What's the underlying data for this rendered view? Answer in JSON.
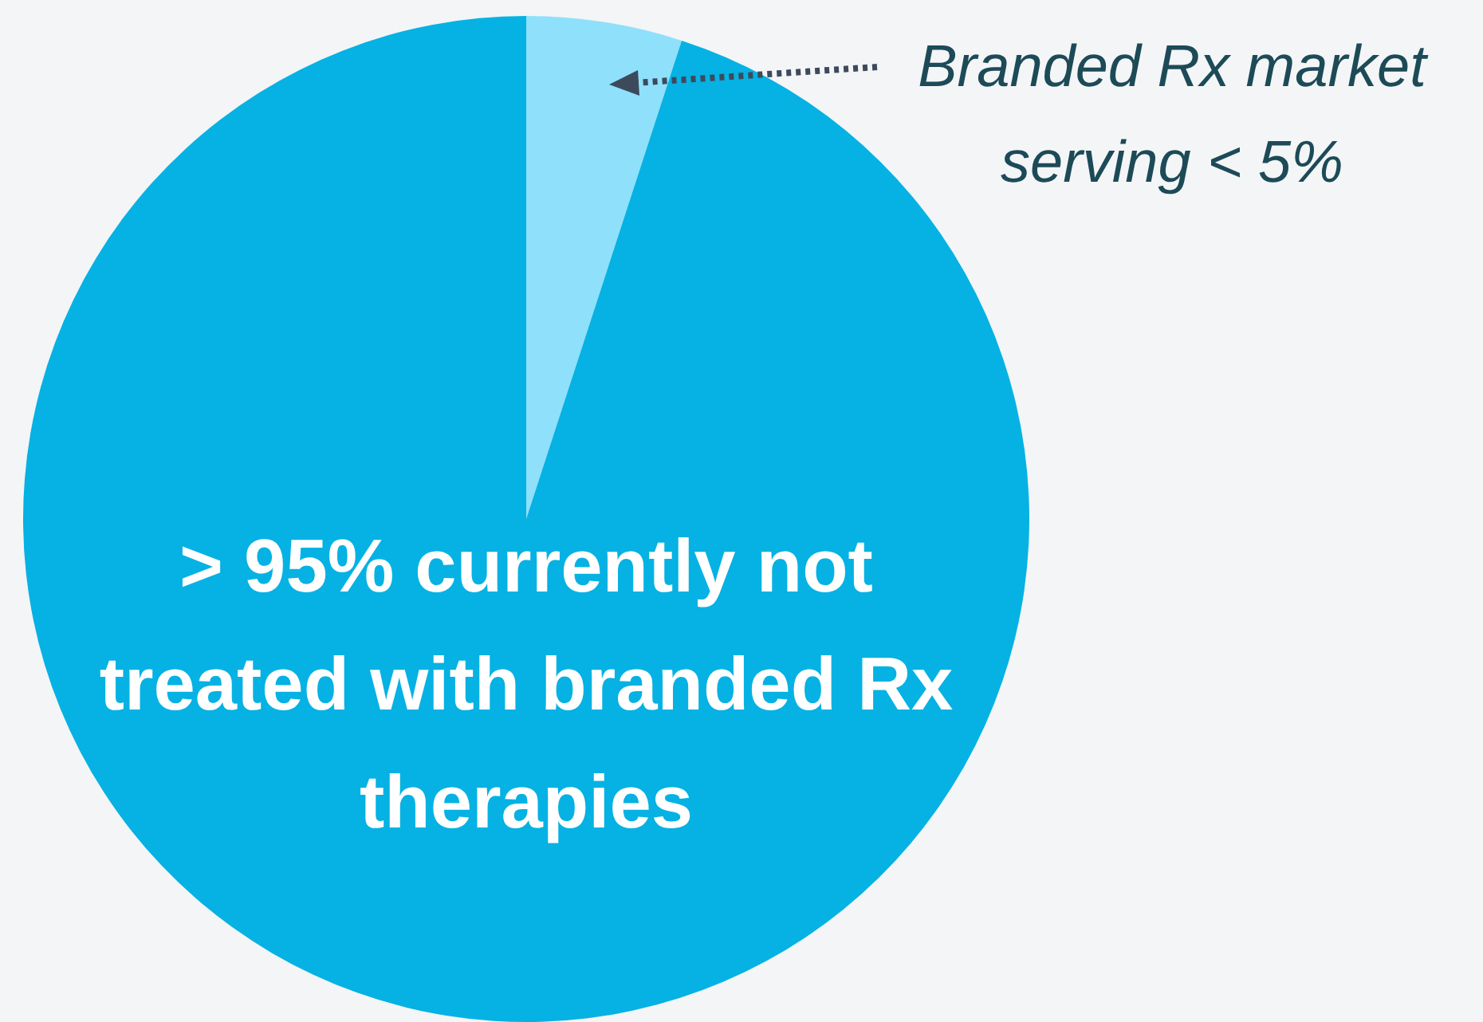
{
  "chart_data": {
    "type": "pie",
    "categories": [
      "Branded Rx market serving < 5%",
      "> 95% currently not treated with branded Rx therapies"
    ],
    "values": [
      5,
      95
    ],
    "colors": [
      "#8fe0fb",
      "#05b2e3"
    ]
  }
}
